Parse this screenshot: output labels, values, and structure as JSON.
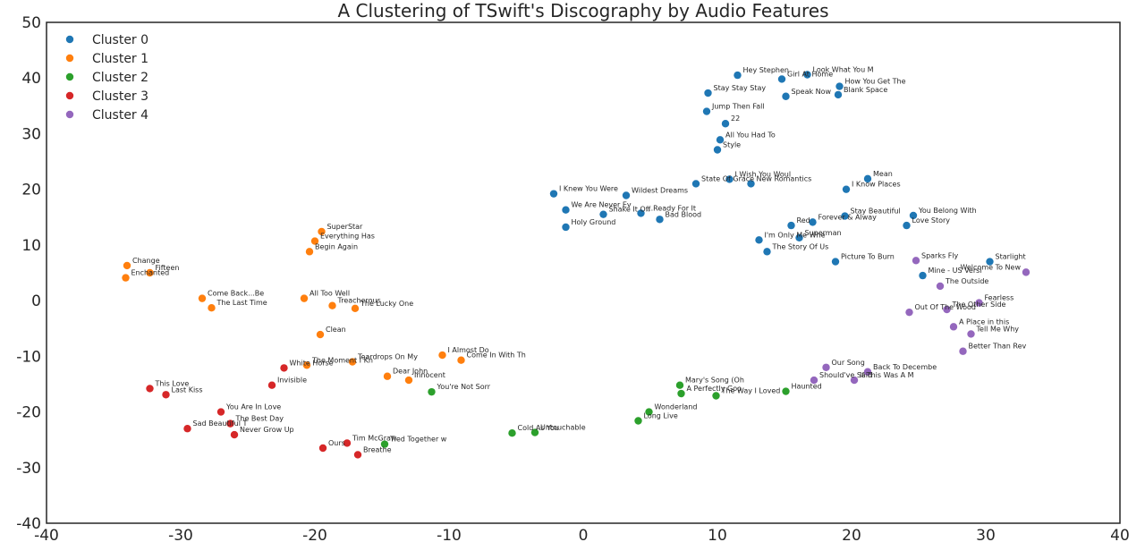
{
  "chart_data": {
    "type": "scatter",
    "title": "A Clustering of TSwift's Discography by Audio Features",
    "xlabel": "",
    "ylabel": "",
    "xlim": [
      -40,
      40
    ],
    "ylim": [
      -40,
      50
    ],
    "xticks": [
      -40,
      -30,
      -20,
      -10,
      0,
      10,
      20,
      30,
      40
    ],
    "yticks": [
      -40,
      -30,
      -20,
      -10,
      0,
      10,
      20,
      30,
      40,
      50
    ],
    "grid": false,
    "legend_position": "top-left",
    "series": [
      {
        "name": "Cluster 0",
        "color": "#1f77b4",
        "points": [
          {
            "x": 11.5,
            "y": 40.5,
            "label": "Hey Stephen"
          },
          {
            "x": 14.8,
            "y": 39.8,
            "label": "Girl At Home"
          },
          {
            "x": 16.7,
            "y": 40.6,
            "label": "Look What You M"
          },
          {
            "x": 19.1,
            "y": 38.5,
            "label": "How You Get The"
          },
          {
            "x": 9.3,
            "y": 37.3,
            "label": "Stay Stay Stay"
          },
          {
            "x": 15.1,
            "y": 36.7,
            "label": "Speak Now"
          },
          {
            "x": 19.0,
            "y": 37.0,
            "label": "Blank Space"
          },
          {
            "x": 9.2,
            "y": 34.0,
            "label": "Jump Then Fall"
          },
          {
            "x": 10.6,
            "y": 31.8,
            "label": "22"
          },
          {
            "x": 10.2,
            "y": 28.9,
            "label": "All You Had To"
          },
          {
            "x": 10.0,
            "y": 27.1,
            "label": "Style"
          },
          {
            "x": 8.4,
            "y": 21.0,
            "label": "State Of Grace"
          },
          {
            "x": 10.9,
            "y": 21.8,
            "label": "I Wish You Woul"
          },
          {
            "x": 12.5,
            "y": 21.0,
            "label": "New Romantics"
          },
          {
            "x": 21.2,
            "y": 21.9,
            "label": "Mean"
          },
          {
            "x": 19.6,
            "y": 20.0,
            "label": "I Know Places"
          },
          {
            "x": -2.2,
            "y": 19.2,
            "label": "I Knew You Were"
          },
          {
            "x": 3.2,
            "y": 18.9,
            "label": "Wildest Dreams"
          },
          {
            "x": -1.3,
            "y": 16.3,
            "label": "We Are Never Ev"
          },
          {
            "x": 1.5,
            "y": 15.5,
            "label": "Shake It Off"
          },
          {
            "x": 4.3,
            "y": 15.7,
            "label": "...Ready For It"
          },
          {
            "x": 5.7,
            "y": 14.6,
            "label": "Bad Blood"
          },
          {
            "x": -1.3,
            "y": 13.2,
            "label": "Holy Ground"
          },
          {
            "x": 17.1,
            "y": 14.1,
            "label": "Forever & Alway"
          },
          {
            "x": 19.5,
            "y": 15.2,
            "label": "Stay Beautiful"
          },
          {
            "x": 24.6,
            "y": 15.3,
            "label": "You Belong With"
          },
          {
            "x": 24.1,
            "y": 13.5,
            "label": "Love Story"
          },
          {
            "x": 15.5,
            "y": 13.5,
            "label": "Red"
          },
          {
            "x": 16.1,
            "y": 11.3,
            "label": "Superman"
          },
          {
            "x": 13.1,
            "y": 10.9,
            "label": "I'm Only Me Whe"
          },
          {
            "x": 13.7,
            "y": 8.8,
            "label": "The Story Of Us"
          },
          {
            "x": 18.8,
            "y": 7.0,
            "label": "Picture To Burn"
          },
          {
            "x": 30.3,
            "y": 7.0,
            "label": "Starlight"
          },
          {
            "x": 25.3,
            "y": 4.5,
            "label": "Mine - US Versi"
          }
        ]
      },
      {
        "name": "Cluster 1",
        "color": "#ff7f0e",
        "points": [
          {
            "x": -19.5,
            "y": 12.4,
            "label": "SuperStar"
          },
          {
            "x": -20.0,
            "y": 10.7,
            "label": "Everything Has"
          },
          {
            "x": -20.4,
            "y": 8.8,
            "label": "Begin Again"
          },
          {
            "x": -34.0,
            "y": 6.3,
            "label": "Change"
          },
          {
            "x": -32.3,
            "y": 5.0,
            "label": "Fifteen"
          },
          {
            "x": -34.1,
            "y": 4.1,
            "label": "Enchanted"
          },
          {
            "x": -28.4,
            "y": 0.4,
            "label": "Come Back...Be"
          },
          {
            "x": -20.8,
            "y": 0.4,
            "label": "All Too Well"
          },
          {
            "x": -27.7,
            "y": -1.3,
            "label": "The Last Time"
          },
          {
            "x": -18.7,
            "y": -0.9,
            "label": "Treacherous"
          },
          {
            "x": -17.0,
            "y": -1.4,
            "label": "The Lucky One"
          },
          {
            "x": -19.6,
            "y": -6.1,
            "label": "Clean"
          },
          {
            "x": -10.5,
            "y": -9.8,
            "label": "I Almost Do"
          },
          {
            "x": -9.1,
            "y": -10.7,
            "label": "Come In With Th"
          },
          {
            "x": -17.2,
            "y": -11.0,
            "label": "Teardrops On My"
          },
          {
            "x": -20.6,
            "y": -11.6,
            "label": "The Moment I Kn"
          },
          {
            "x": -14.6,
            "y": -13.6,
            "label": "Dear John"
          },
          {
            "x": -13.0,
            "y": -14.3,
            "label": "Innocent"
          }
        ]
      },
      {
        "name": "Cluster 2",
        "color": "#2ca02c",
        "points": [
          {
            "x": -11.3,
            "y": -16.4,
            "label": "You're Not Sorr"
          },
          {
            "x": 7.2,
            "y": -15.2,
            "label": "Mary's Song (Oh"
          },
          {
            "x": 7.3,
            "y": -16.7,
            "label": "A Perfectly Goo"
          },
          {
            "x": 9.9,
            "y": -17.1,
            "label": "The Way I Loved"
          },
          {
            "x": 15.1,
            "y": -16.3,
            "label": "Haunted"
          },
          {
            "x": 4.9,
            "y": -20.0,
            "label": "Wonderland"
          },
          {
            "x": 4.1,
            "y": -21.6,
            "label": "Long Live"
          },
          {
            "x": -5.3,
            "y": -23.8,
            "label": "Cold As You"
          },
          {
            "x": -3.6,
            "y": -23.7,
            "label": "Untouchable"
          },
          {
            "x": -14.8,
            "y": -25.8,
            "label": "Tied Together w"
          }
        ]
      },
      {
        "name": "Cluster 3",
        "color": "#d62728",
        "points": [
          {
            "x": -22.3,
            "y": -12.1,
            "label": "White Horse"
          },
          {
            "x": -23.2,
            "y": -15.2,
            "label": "Invisible"
          },
          {
            "x": -32.3,
            "y": -15.8,
            "label": "This Love"
          },
          {
            "x": -31.1,
            "y": -16.9,
            "label": "Last Kiss"
          },
          {
            "x": -27.0,
            "y": -20.0,
            "label": "You Are In Love"
          },
          {
            "x": -26.3,
            "y": -22.1,
            "label": "The Best Day"
          },
          {
            "x": -29.5,
            "y": -23.0,
            "label": "Sad Beautiful T"
          },
          {
            "x": -26.0,
            "y": -24.1,
            "label": "Never Grow Up"
          },
          {
            "x": -17.6,
            "y": -25.6,
            "label": "Tim McGraw"
          },
          {
            "x": -19.4,
            "y": -26.5,
            "label": "Ours"
          },
          {
            "x": -16.8,
            "y": -27.7,
            "label": "Breathe"
          }
        ]
      },
      {
        "name": "Cluster 4",
        "color": "#9467bd",
        "points": [
          {
            "x": 24.8,
            "y": 7.2,
            "label": "Sparks Fly"
          },
          {
            "x": 33.0,
            "y": 5.1,
            "label": "Welcome To New"
          },
          {
            "x": 26.6,
            "y": 2.6,
            "label": "The Outside"
          },
          {
            "x": 29.5,
            "y": -0.4,
            "label": "Fearless"
          },
          {
            "x": 27.1,
            "y": -1.6,
            "label": "The Other Side"
          },
          {
            "x": 24.3,
            "y": -2.1,
            "label": "Out Of The Wood"
          },
          {
            "x": 27.6,
            "y": -4.7,
            "label": "A Place in this"
          },
          {
            "x": 28.9,
            "y": -6.0,
            "label": "Tell Me Why"
          },
          {
            "x": 28.3,
            "y": -9.1,
            "label": "Better Than Rev"
          },
          {
            "x": 18.1,
            "y": -12.0,
            "label": "Our Song"
          },
          {
            "x": 21.2,
            "y": -12.8,
            "label": "Back To Decembe"
          },
          {
            "x": 17.2,
            "y": -14.3,
            "label": "Should've Said"
          },
          {
            "x": 20.2,
            "y": -14.3,
            "label": "If This Was A M"
          }
        ]
      }
    ]
  }
}
